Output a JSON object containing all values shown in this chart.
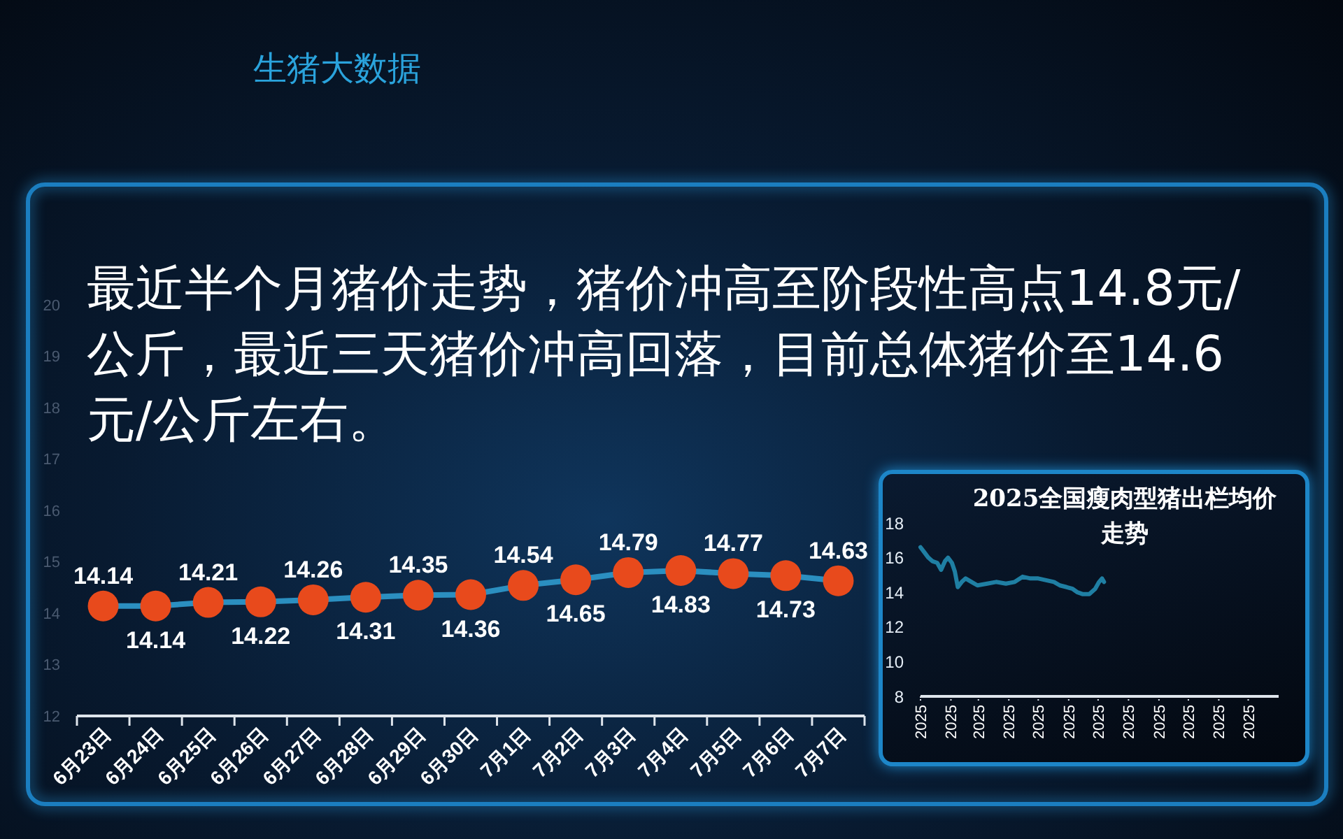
{
  "chart_data": [
    {
      "type": "line",
      "title": "最近半个月猪价走势，猪价冲高至阶段性高点14.8元/公斤，最近三天猪价冲高回落，目前总体猪价至14.6元/公斤左右。",
      "annotations": [
        "生猪大数据"
      ],
      "categories": [
        "6月23日",
        "6月24日",
        "6月25日",
        "6月26日",
        "6月27日",
        "6月28日",
        "6月29日",
        "6月30日",
        "7月1日",
        "7月2日",
        "7月3日",
        "7月4日",
        "7月5日",
        "7月6日",
        "7月7日"
      ],
      "values": [
        14.14,
        14.14,
        14.21,
        14.22,
        14.26,
        14.31,
        14.35,
        14.36,
        14.54,
        14.65,
        14.79,
        14.83,
        14.77,
        14.73,
        14.63
      ],
      "color": "#2b8fc0",
      "colors": [
        "#e84a1c",
        "#e84a1c",
        "#e84a1c",
        "#e84a1c",
        "#e84a1c",
        "#e84a1c",
        "#e84a1c",
        "#e84a1c",
        "#e84a1c",
        "#e84a1c",
        "#e84a1c",
        "#e84a1c",
        "#e84a1c",
        "#e84a1c",
        "#e84a1c"
      ],
      "marker": "circle",
      "data_labels": true,
      "ylim": [
        12,
        20
      ],
      "yticks": [
        12,
        13,
        14,
        15,
        16,
        17,
        18,
        19,
        20
      ]
    },
    {
      "type": "line",
      "title": "2025全国瘦肉型猪出栏均价走势",
      "x": [
        "2025-01-01",
        "2025-01-05",
        "2025-01-09",
        "2025-01-13",
        "2025-01-18",
        "2025-01-22",
        "2025-01-26",
        "2025-01-29",
        "2025-02-02",
        "2025-02-05",
        "2025-02-08",
        "2025-02-12",
        "2025-02-16",
        "2025-02-22",
        "2025-02-28",
        "2025-03-10",
        "2025-03-19",
        "2025-03-29",
        "2025-04-07",
        "2025-04-15",
        "2025-04-23",
        "2025-05-01",
        "2025-05-09",
        "2025-05-17",
        "2025-05-23",
        "2025-05-30",
        "2025-06-05",
        "2025-06-10",
        "2025-06-15",
        "2025-06-22",
        "2025-06-28",
        "2025-07-02",
        "2025-07-05",
        "2025-07-07"
      ],
      "values": [
        16.6,
        16.3,
        16.0,
        15.8,
        15.7,
        15.3,
        15.8,
        16.0,
        15.7,
        15.2,
        14.3,
        14.6,
        14.8,
        14.6,
        14.4,
        14.5,
        14.6,
        14.5,
        14.6,
        14.9,
        14.8,
        14.8,
        14.7,
        14.6,
        14.4,
        14.3,
        14.2,
        14.0,
        13.9,
        13.9,
        14.2,
        14.6,
        14.8,
        14.6
      ],
      "color": "#1f7fa3",
      "xlim": [
        "2025-01-01",
        "2026-01-01"
      ],
      "xticks": [
        {
          "value": "2025-01-01",
          "label": "2025"
        },
        {
          "value": "2025-02-01",
          "label": "2025"
        },
        {
          "value": "2025-03-01",
          "label": "2025"
        },
        {
          "value": "2025-04-01",
          "label": "2025"
        },
        {
          "value": "2025-05-01",
          "label": "2025"
        },
        {
          "value": "2025-06-01",
          "label": "2025"
        },
        {
          "value": "2025-07-01",
          "label": "2025"
        },
        {
          "value": "2025-08-01",
          "label": "2025"
        },
        {
          "value": "2025-09-01",
          "label": "2025"
        },
        {
          "value": "2025-10-01",
          "label": "2025"
        },
        {
          "value": "2025-11-01",
          "label": "2025"
        },
        {
          "value": "2025-12-01",
          "label": "2025"
        }
      ],
      "ylim": [
        8,
        18
      ],
      "yticks": [
        8,
        10,
        12,
        14,
        16,
        18
      ]
    }
  ]
}
